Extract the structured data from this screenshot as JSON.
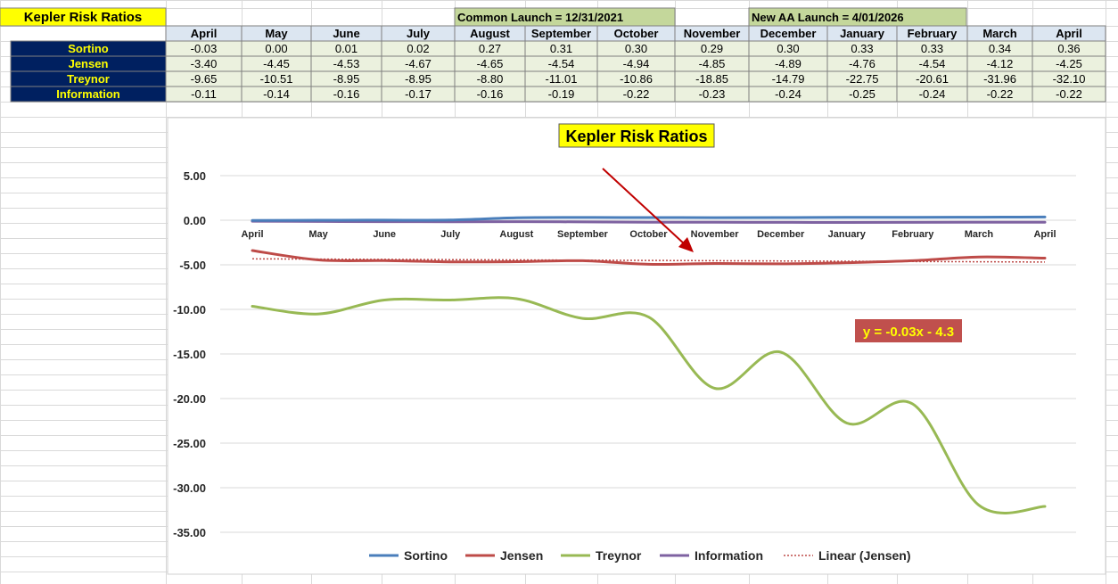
{
  "sheet": {
    "title": "Kepler Risk Ratios",
    "banners": [
      {
        "text": "Common Launch = 12/31/2021"
      },
      {
        "text": "New AA Launch = 4/01/2026"
      }
    ],
    "months": [
      "April",
      "May",
      "June",
      "July",
      "August",
      "September",
      "October",
      "November",
      "December",
      "January",
      "February",
      "March",
      "April"
    ],
    "rows": [
      {
        "label": "Sortino",
        "values": [
          "-0.03",
          "0.00",
          "0.01",
          "0.02",
          "0.27",
          "0.31",
          "0.30",
          "0.29",
          "0.30",
          "0.33",
          "0.33",
          "0.34",
          "0.36"
        ]
      },
      {
        "label": "Jensen",
        "values": [
          "-3.40",
          "-4.45",
          "-4.53",
          "-4.67",
          "-4.65",
          "-4.54",
          "-4.94",
          "-4.85",
          "-4.89",
          "-4.76",
          "-4.54",
          "-4.12",
          "-4.25"
        ]
      },
      {
        "label": "Treynor",
        "values": [
          "-9.65",
          "-10.51",
          "-8.95",
          "-8.95",
          "-8.80",
          "-11.01",
          "-10.86",
          "-18.85",
          "-14.79",
          "-22.75",
          "-20.61",
          "-31.96",
          "-32.10"
        ]
      },
      {
        "label": "Information",
        "values": [
          "-0.11",
          "-0.14",
          "-0.16",
          "-0.17",
          "-0.16",
          "-0.19",
          "-0.22",
          "-0.23",
          "-0.24",
          "-0.25",
          "-0.24",
          "-0.22",
          "-0.22"
        ]
      }
    ]
  },
  "chart_data": {
    "type": "line",
    "title": "Kepler Risk Ratios",
    "categories": [
      "April",
      "May",
      "June",
      "July",
      "August",
      "September",
      "October",
      "November",
      "December",
      "January",
      "February",
      "March",
      "April"
    ],
    "series": [
      {
        "name": "Sortino",
        "values": [
          -0.03,
          0.0,
          0.01,
          0.02,
          0.27,
          0.31,
          0.3,
          0.29,
          0.3,
          0.33,
          0.33,
          0.34,
          0.36
        ],
        "color": "#4A7EBB"
      },
      {
        "name": "Jensen",
        "values": [
          -3.4,
          -4.45,
          -4.53,
          -4.67,
          -4.65,
          -4.54,
          -4.94,
          -4.85,
          -4.89,
          -4.76,
          -4.54,
          -4.12,
          -4.25
        ],
        "color": "#BE4B48"
      },
      {
        "name": "Treynor",
        "values": [
          -9.65,
          -10.51,
          -8.95,
          -8.95,
          -8.8,
          -11.01,
          -10.86,
          -18.85,
          -14.79,
          -22.75,
          -20.61,
          -31.96,
          -32.1
        ],
        "color": "#98B954"
      },
      {
        "name": "Information",
        "values": [
          -0.11,
          -0.14,
          -0.16,
          -0.17,
          -0.16,
          -0.19,
          -0.22,
          -0.23,
          -0.24,
          -0.25,
          -0.24,
          -0.22,
          -0.22
        ],
        "color": "#7E62A1"
      }
    ],
    "trendline": {
      "name": "Linear (Jensen)",
      "series": "Jensen",
      "slope": -0.03,
      "intercept": -4.3,
      "equation": "y = -0.03x - 4.3",
      "color": "#BE4B48"
    },
    "yticks": [
      "5.00",
      "0.00",
      "-5.00",
      "-10.00",
      "-15.00",
      "-20.00",
      "-25.00",
      "-30.00",
      "-35.00"
    ],
    "ylim": [
      -35,
      5
    ],
    "grid": true,
    "legend": "bottom",
    "colors": {
      "title_bg": "#FFFF00",
      "header_bg": "#DCE6F1",
      "label_bg": "#002060",
      "label_text": "#FFFF00",
      "banner_bg": "#C4D79B",
      "value_bg": "#EBF1DE",
      "equation_bg": "#C0504D",
      "equation_text": "#FFFF00",
      "arrow": "#C00000"
    }
  }
}
